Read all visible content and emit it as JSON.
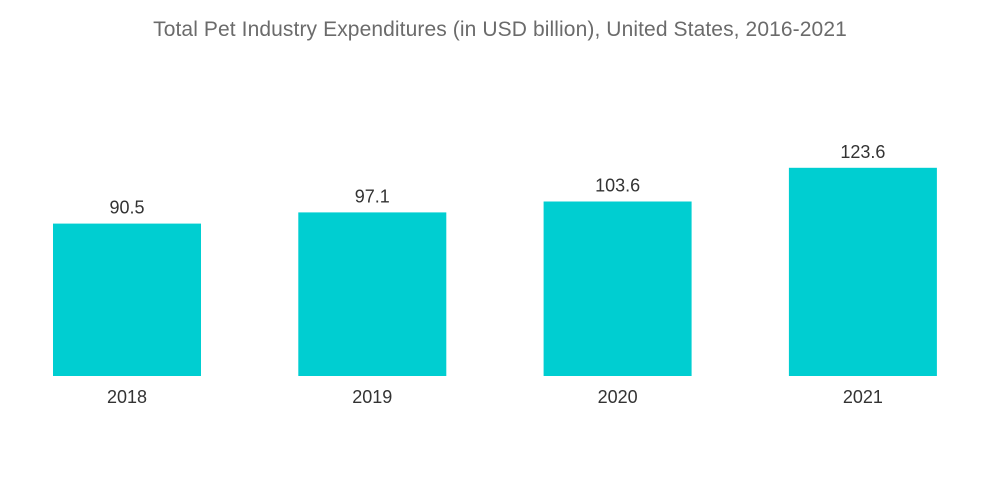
{
  "chart_data": {
    "type": "bar",
    "title": "Total Pet Industry Expenditures (in USD billion), United States, 2016-2021",
    "categories": [
      "2018",
      "2019",
      "2020",
      "2021"
    ],
    "values": [
      90.5,
      97.1,
      103.6,
      123.6
    ],
    "value_labels": [
      "90.5",
      "97.1",
      "103.6",
      "123.6"
    ],
    "xlabel": "",
    "ylabel": "",
    "ylim": [
      0,
      140
    ],
    "grid": false,
    "legend": "none",
    "bar_color": "#00CED1"
  }
}
